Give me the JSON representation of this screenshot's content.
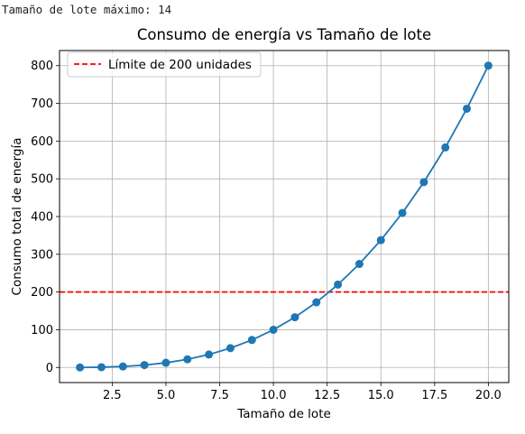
{
  "console": {
    "output_text": "Tamaño de lote máximo: 14"
  },
  "chart_data": {
    "type": "line",
    "title": "Consumo de energía vs Tamaño de lote",
    "xlabel": "Tamaño de lote",
    "ylabel": "Consumo total de energía",
    "xlim": [
      0.05,
      20.95
    ],
    "ylim": [
      -40,
      840
    ],
    "xticks": [
      2.5,
      5.0,
      7.5,
      10.0,
      12.5,
      15.0,
      17.5,
      20.0
    ],
    "xtick_labels": [
      "2.5",
      "5.0",
      "7.5",
      "10.0",
      "12.5",
      "15.0",
      "17.5",
      "20.0"
    ],
    "yticks": [
      0,
      100,
      200,
      300,
      400,
      500,
      600,
      700,
      800
    ],
    "ytick_labels": [
      "0",
      "100",
      "200",
      "300",
      "400",
      "500",
      "600",
      "700",
      "800"
    ],
    "grid": true,
    "legend_position": "top-left",
    "series": [
      {
        "x": [
          1,
          2,
          3,
          4,
          5,
          6,
          7,
          8,
          9,
          10,
          11,
          12,
          13,
          14,
          15,
          16,
          17,
          18,
          19,
          20
        ],
        "values": [
          0.1,
          0.8,
          2.7,
          6.4,
          12.5,
          21.6,
          34.3,
          51.2,
          72.9,
          100,
          133.1,
          172.8,
          219.7,
          274.4,
          337.5,
          409.6,
          491.3,
          583.2,
          685.9,
          800
        ],
        "color": "#1f77b4",
        "marker": "circle"
      }
    ],
    "reference_line": {
      "y": 200,
      "label": "Límite de 200 unidades",
      "color": "#ff0000",
      "style": "dashed"
    }
  }
}
